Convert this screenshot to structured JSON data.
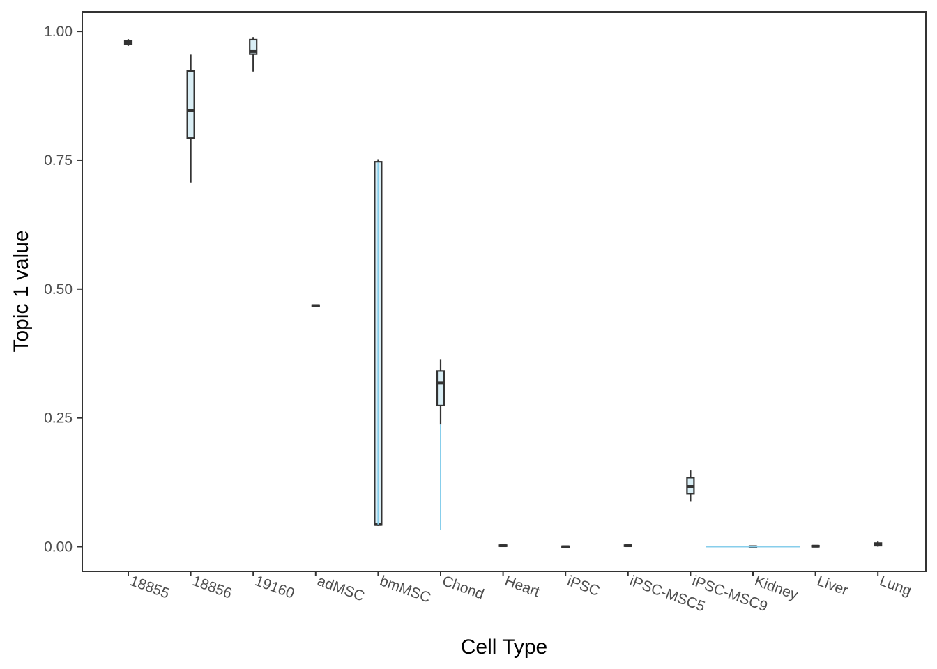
{
  "chart_data": {
    "type": "box",
    "xlabel": "Cell Type",
    "ylabel": "Topic 1 value",
    "ylim": [
      -0.048,
      1.038
    ],
    "y_ticks": [
      {
        "value": 0.0,
        "label": "0.00"
      },
      {
        "value": 0.25,
        "label": "0.25"
      },
      {
        "value": 0.5,
        "label": "0.50"
      },
      {
        "value": 0.75,
        "label": "0.75"
      },
      {
        "value": 1.0,
        "label": "1.00"
      }
    ],
    "grid": false,
    "legend": "none",
    "categories": [
      "18855",
      "18856",
      "19160",
      "adMSC",
      "bmMSC",
      "Chond",
      "Heart",
      "iPSC",
      "iPSC-MSC5",
      "iPSC-MSC9",
      "Kidney",
      "Liver",
      "Lung"
    ],
    "boxes": [
      {
        "category": "18855",
        "min": 0.972,
        "q1": 0.975,
        "median": 0.978,
        "q3": 0.982,
        "max": 0.985
      },
      {
        "category": "18856",
        "min": 0.707,
        "q1": 0.793,
        "median": 0.847,
        "q3": 0.923,
        "max": 0.955
      },
      {
        "category": "19160",
        "min": 0.922,
        "q1": 0.956,
        "median": 0.961,
        "q3": 0.984,
        "max": 0.989
      },
      {
        "category": "adMSC",
        "min": 0.466,
        "q1": 0.467,
        "median": 0.468,
        "q3": 0.469,
        "max": 0.47
      },
      {
        "category": "bmMSC",
        "min": 0.04,
        "q1": 0.042,
        "median": 0.043,
        "q3": 0.747,
        "max": 0.752
      },
      {
        "category": "Chond",
        "min": 0.237,
        "q1": 0.274,
        "median": 0.318,
        "q3": 0.341,
        "max": 0.364
      },
      {
        "category": "Heart",
        "min": 0.0,
        "q1": 0.001,
        "median": 0.002,
        "q3": 0.003,
        "max": 0.004
      },
      {
        "category": "iPSC",
        "min": -0.002,
        "q1": -0.001,
        "median": 0.0,
        "q3": 0.001,
        "max": 0.002
      },
      {
        "category": "iPSC-MSC5",
        "min": 0.0,
        "q1": 0.001,
        "median": 0.002,
        "q3": 0.003,
        "max": 0.004
      },
      {
        "category": "iPSC-MSC9",
        "min": 0.088,
        "q1": 0.103,
        "median": 0.117,
        "q3": 0.134,
        "max": 0.148
      },
      {
        "category": "Kidney",
        "min": -0.002,
        "q1": -0.001,
        "median": 0.0,
        "q3": 0.001,
        "max": 0.002
      },
      {
        "category": "Liver",
        "min": -0.001,
        "q1": 0.0,
        "median": 0.001,
        "q3": 0.002,
        "max": 0.003
      },
      {
        "category": "Lung",
        "min": 0.0,
        "q1": 0.002,
        "median": 0.004,
        "q3": 0.007,
        "max": 0.01
      }
    ],
    "overlay_lines": [
      {
        "category": "bmMSC",
        "kind": "vertical",
        "y_from": 0.043,
        "y_to": 0.745
      },
      {
        "category": "Chond",
        "kind": "vertical",
        "y_from": 0.032,
        "y_to": 0.237
      },
      {
        "kind": "horizontal",
        "y": 0.0,
        "from_category": "iPSC-MSC9",
        "to_category": "Kidney"
      }
    ],
    "colors": {
      "box_outline": "#333333",
      "box_fill": "#d9eef5",
      "overlay_line": "#87ceeb",
      "panel_border": "#333333",
      "tick_text": "#4d4d4d",
      "title_text": "#000000"
    }
  }
}
